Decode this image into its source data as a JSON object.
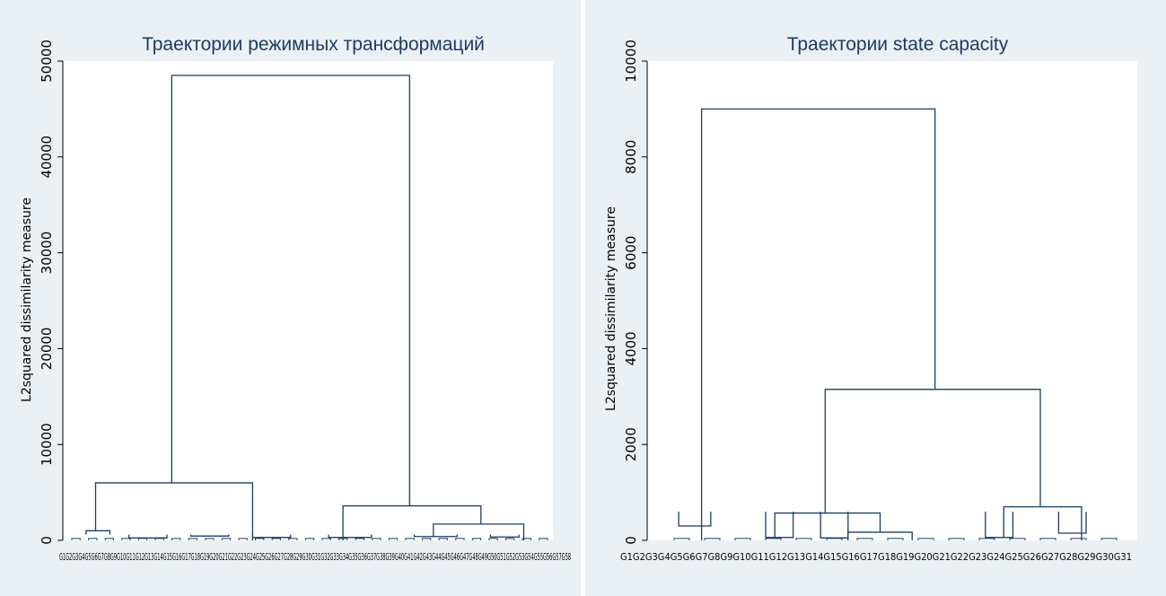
{
  "charts": [
    {
      "title": "Траектории режимных трансформаций",
      "ylabel": "L2squared dissimilarity measure",
      "yticks": [
        0,
        10000,
        20000,
        30000,
        40000,
        50000
      ],
      "ylim": [
        0,
        50000
      ],
      "leaf_labels": "G1G2G3G4G5G6G7G8G9G10G11G12G13G14G15G16G17G18G19G20G21G22G23G24G25G26G27G28G29G30G31G32G33G34G35G36G37G38G39G40G41G42G43G44G45G46G47G48G49G50G51G52G53G54G55G56G57G58",
      "colors": {
        "line": "#1a3d66",
        "plot_bg": "#ffffff",
        "outer_bg": "#ebf0f4"
      }
    },
    {
      "title": "Траектории state capacity",
      "ylabel": "L2squared dissimilarity measure",
      "yticks": [
        0,
        2000,
        4000,
        6000,
        8000,
        10000
      ],
      "ylim": [
        0,
        10000
      ],
      "leaf_labels": "G1G2G3G4G5G6G7G8G9G10G11G12G13G14G15G16G17G18G19G20G21G22G23G24G25G26G27G28G29G30G31",
      "colors": {
        "line": "#1a3d66",
        "plot_bg": "#ffffff",
        "outer_bg": "#ebf0f4"
      }
    }
  ],
  "chart_data": [
    {
      "type": "dendrogram",
      "title": "Траектории режимных трансформаций",
      "ylabel": "L2squared dissimilarity measure",
      "ylim": [
        0,
        50000
      ],
      "n_leaves": 58,
      "merges": [
        {
          "left": [
            0.02,
            0.04
          ],
          "right": [
            0.06,
            0.1
          ],
          "height": 1000
        },
        {
          "left": [
            0.1,
            0.14
          ],
          "right": [
            0.18,
            0.22
          ],
          "height": 250
        },
        {
          "left": [
            0.22,
            0.28
          ],
          "right": [
            0.3,
            0.36
          ],
          "height": 450
        },
        {
          "left": [
            0.36,
            0.4
          ],
          "right": [
            0.44,
            0.48
          ],
          "height": 300
        },
        {
          "left": [
            0.05,
            0.05
          ],
          "right": [
            0.38,
            0.38
          ],
          "height": 6000
        },
        {
          "left": [
            0.52,
            0.56
          ],
          "right": [
            0.6,
            0.66
          ],
          "height": 300
        },
        {
          "left": [
            0.7,
            0.74
          ],
          "right": [
            0.78,
            0.84
          ],
          "height": 400
        },
        {
          "left": [
            0.86,
            0.9
          ],
          "right": [
            0.92,
            0.96
          ],
          "height": 350
        },
        {
          "left": [
            0.76,
            0.76
          ],
          "right": [
            0.95,
            0.95
          ],
          "height": 1700
        },
        {
          "left": [
            0.57,
            0.57
          ],
          "right": [
            0.86,
            0.86
          ],
          "height": 3600
        },
        {
          "left": [
            0.21,
            0.21
          ],
          "right": [
            0.71,
            0.71
          ],
          "height": 48500
        }
      ]
    },
    {
      "type": "dendrogram",
      "title": "Траектории state capacity",
      "ylabel": "L2squared dissimilarity measure",
      "ylim": [
        0,
        10000
      ],
      "n_leaves": 31,
      "merges": [
        {
          "left": [
            0.0,
            0.02
          ],
          "right": [
            0.06,
            0.1
          ],
          "height": 300
        },
        {
          "left": [
            0.18,
            0.22
          ],
          "right": [
            0.24,
            0.28
          ],
          "height": 60
        },
        {
          "left": [
            0.3,
            0.34
          ],
          "right": [
            0.36,
            0.4
          ],
          "height": 50
        },
        {
          "left": [
            0.38,
            0.38
          ],
          "right": [
            0.52,
            0.52
          ],
          "height": 170
        },
        {
          "left": [
            0.22,
            0.22
          ],
          "right": [
            0.45,
            0.45
          ],
          "height": 570
        },
        {
          "left": [
            0.66,
            0.7
          ],
          "right": [
            0.72,
            0.76
          ],
          "height": 60
        },
        {
          "left": [
            0.82,
            0.86
          ],
          "right": [
            0.88,
            0.92
          ],
          "height": 150
        },
        {
          "left": [
            0.72,
            0.72
          ],
          "right": [
            0.89,
            0.89
          ],
          "height": 700
        },
        {
          "left": [
            0.33,
            0.33
          ],
          "right": [
            0.8,
            0.8
          ],
          "height": 3150
        },
        {
          "left": [
            0.06,
            0.06
          ],
          "right": [
            0.57,
            0.57
          ],
          "height": 9000
        }
      ]
    }
  ]
}
